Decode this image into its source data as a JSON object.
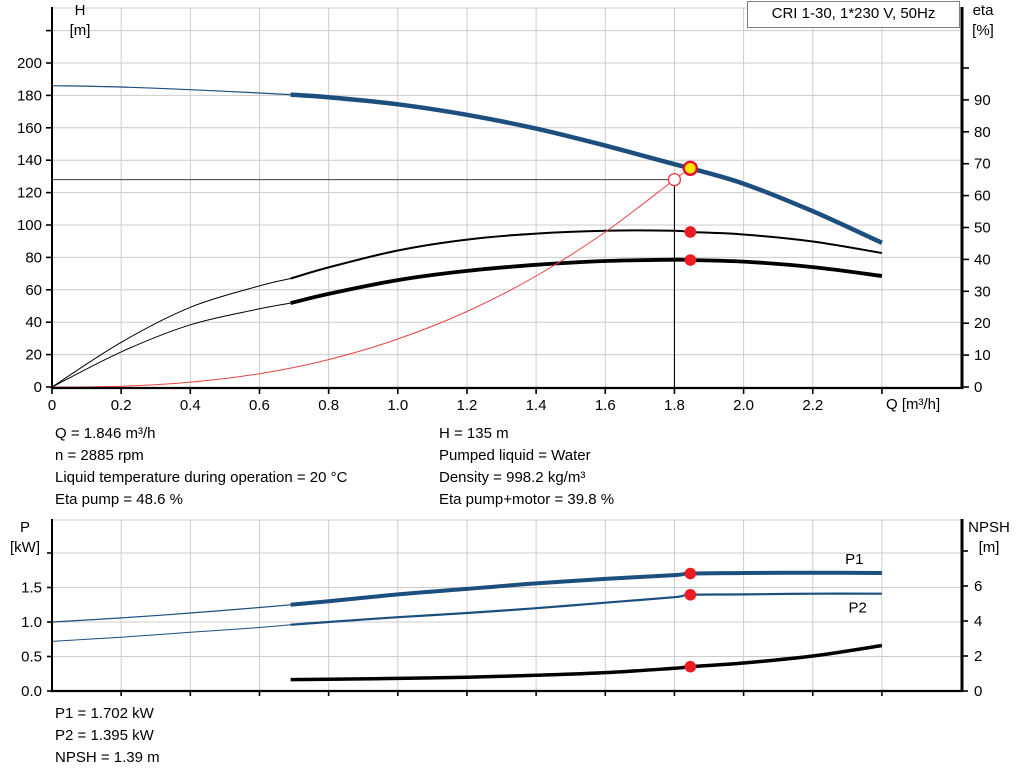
{
  "colors": {
    "curve_blue": "#1c4e7e",
    "curve_black": "#000000",
    "curve_red": "#e64545",
    "grid": "#cccccc",
    "guide_line": "#3f3f3f",
    "axis": "#000000",
    "marker_red": "#ed1c24",
    "marker_yellow": "#ffe600",
    "marker_ring": "#e8112d"
  },
  "chart_data": [
    {
      "type": "line",
      "name": "QH and efficiency curves",
      "title_box": "CRI 1-30, 1*230 V, 50Hz",
      "x_axis": {
        "label": "Q [m³/h]",
        "range": [
          0,
          2.63
        ],
        "ticks": [
          "0",
          "0.2",
          "0.4",
          "0.6",
          "0.8",
          "1.0",
          "1.2",
          "1.4",
          "1.6",
          "1.8",
          "2.0",
          "2.2"
        ],
        "tick_values": [
          0,
          0.2,
          0.4,
          0.6,
          0.8,
          1.0,
          1.2,
          1.4,
          1.6,
          1.8,
          2.0,
          2.2
        ],
        "extra_ticks": [
          2.4
        ]
      },
      "left_axis": {
        "label": "H",
        "unit": "[m]",
        "range": [
          0,
          234
        ],
        "ticks": [
          "0",
          "20",
          "40",
          "60",
          "80",
          "100",
          "120",
          "140",
          "160",
          "180",
          "200"
        ],
        "tick_values": [
          0,
          20,
          40,
          60,
          80,
          100,
          120,
          140,
          160,
          180,
          200
        ],
        "extra_ticks": [
          220
        ]
      },
      "right_axis": {
        "label": "eta",
        "unit": "[%]",
        "range": [
          0,
          119
        ],
        "ticks": [
          "0",
          "10",
          "20",
          "30",
          "40",
          "50",
          "60",
          "70",
          "80",
          "90"
        ],
        "tick_values": [
          0,
          10,
          20,
          30,
          40,
          50,
          60,
          70,
          80,
          90
        ],
        "extra_ticks": [
          100
        ]
      },
      "series": [
        {
          "id": "eta_pump",
          "name": "Eta pump curve",
          "axis": "right",
          "color_key": "curve_black",
          "width_thin": 1,
          "width_thick": 2,
          "split_q": 0.69,
          "q": [
            0,
            0.2,
            0.4,
            0.6,
            0.69,
            0.8,
            1.0,
            1.2,
            1.4,
            1.6,
            1.8,
            1.846,
            2.0,
            2.2,
            2.4
          ],
          "v": [
            0,
            14,
            25,
            31.7,
            34,
            37.5,
            42.8,
            46.2,
            48.1,
            49.0,
            49.0,
            48.6,
            47.8,
            45.6,
            42
          ]
        },
        {
          "id": "eta_pump_motor",
          "name": "Eta pump+motor curve",
          "axis": "right",
          "color_key": "curve_black",
          "width_thin": 1,
          "width_thick": 3.8,
          "split_q": 0.69,
          "q": [
            0,
            0.2,
            0.4,
            0.6,
            0.69,
            0.8,
            1.0,
            1.2,
            1.4,
            1.6,
            1.8,
            1.846,
            2.0,
            2.2,
            2.4
          ],
          "v": [
            0,
            11,
            19.5,
            24.5,
            26.3,
            29.2,
            33.5,
            36.4,
            38.3,
            39.5,
            39.9,
            39.8,
            39.3,
            37.6,
            34.8
          ]
        },
        {
          "id": "system_curve",
          "name": "System curve",
          "axis": "left",
          "color_key": "curve_red",
          "width_thin": 1,
          "width_thick": 1,
          "split_q": null,
          "q": [
            0,
            0.2,
            0.4,
            0.6,
            0.8,
            1.0,
            1.2,
            1.4,
            1.6,
            1.8,
            1.846
          ],
          "v": [
            0,
            0.5,
            3,
            8.2,
            16.9,
            29.6,
            46.6,
            68.5,
            95.7,
            128,
            135
          ]
        },
        {
          "id": "head",
          "name": "QH pump curve",
          "axis": "left",
          "color_key": "curve_blue",
          "width_thin": 1.2,
          "width_thick": 4.5,
          "split_q": 0.69,
          "q": [
            0,
            0.2,
            0.4,
            0.6,
            0.69,
            0.8,
            1.0,
            1.2,
            1.4,
            1.6,
            1.8,
            1.846,
            2.0,
            2.2,
            2.4
          ],
          "v": [
            186,
            185.2,
            183.5,
            181.5,
            180.5,
            178.8,
            174.5,
            168,
            159.5,
            149,
            137.5,
            135,
            125.5,
            108.5,
            89
          ]
        }
      ],
      "guides": [
        {
          "dir": "h",
          "axis": "left",
          "value": 128,
          "q_from": 0,
          "q_to": 1.8
        },
        {
          "dir": "v",
          "axis": "left",
          "q": 1.8,
          "v_from": 0,
          "v_to": 128
        }
      ],
      "markers": [
        {
          "name": "requested-duty-point",
          "style": "open",
          "q": 1.8,
          "axis": "left",
          "value": 128,
          "r": 6
        },
        {
          "name": "eta-pump-duty-point",
          "style": "red",
          "q": 1.846,
          "axis": "right",
          "value": 48.6,
          "r": 5.8
        },
        {
          "name": "eta-pump-motor-duty-point",
          "style": "red",
          "q": 1.846,
          "axis": "right",
          "value": 39.8,
          "r": 5.8
        },
        {
          "name": "duty-point",
          "style": "yellow",
          "q": 1.846,
          "axis": "left",
          "value": 135,
          "r": 6.5
        }
      ]
    },
    {
      "type": "line",
      "name": "Power and NPSH curves",
      "title_box": "",
      "x_axis": {
        "label": "",
        "range": [
          0,
          2.63
        ],
        "ticks": [],
        "tick_values": [],
        "extra_ticks": [
          0.2,
          0.4,
          0.6,
          0.8,
          1.0,
          1.2,
          1.4,
          1.6,
          1.8,
          2.0,
          2.2,
          2.4
        ]
      },
      "left_axis": {
        "label": "P",
        "unit": "[kW]",
        "range": [
          0,
          2.48
        ],
        "ticks": [
          "0.0",
          "0.5",
          "1.0",
          "1.5"
        ],
        "tick_values": [
          0,
          0.5,
          1.0,
          1.5
        ],
        "extra_ticks": [
          2.0
        ]
      },
      "right_axis": {
        "label": "NPSH",
        "unit": "[m]",
        "range": [
          0,
          9.8
        ],
        "ticks": [
          "0",
          "2",
          "4",
          "6"
        ],
        "tick_values": [
          0,
          2,
          4,
          6
        ],
        "extra_ticks": [
          8
        ]
      },
      "series": [
        {
          "id": "p2",
          "name": "P2 shaft power",
          "axis": "left",
          "color_key": "curve_blue",
          "width_thin": 1,
          "width_thick": 2.2,
          "split_q": 0.69,
          "label": "P2",
          "label_q": 2.33,
          "label_dy": 15,
          "q": [
            0,
            0.2,
            0.4,
            0.6,
            0.69,
            0.8,
            1.0,
            1.2,
            1.4,
            1.6,
            1.8,
            1.846,
            2.0,
            2.2,
            2.4
          ],
          "v": [
            0.72,
            0.78,
            0.85,
            0.92,
            0.96,
            1.0,
            1.07,
            1.13,
            1.2,
            1.28,
            1.36,
            1.395,
            1.4,
            1.41,
            1.41
          ]
        },
        {
          "id": "p1",
          "name": "P1 input power",
          "axis": "left",
          "color_key": "curve_blue",
          "width_thin": 1.2,
          "width_thick": 4,
          "split_q": 0.69,
          "label": "P1",
          "label_q": 2.32,
          "label_dy": -13,
          "q": [
            0,
            0.2,
            0.4,
            0.6,
            0.69,
            0.8,
            1.0,
            1.2,
            1.4,
            1.6,
            1.8,
            1.846,
            2.0,
            2.2,
            2.4
          ],
          "v": [
            1.0,
            1.06,
            1.13,
            1.21,
            1.25,
            1.3,
            1.4,
            1.48,
            1.56,
            1.625,
            1.68,
            1.702,
            1.71,
            1.715,
            1.71
          ]
        },
        {
          "id": "npsh",
          "name": "NPSH curve",
          "axis": "right",
          "color_key": "curve_black",
          "width_thin": 3.5,
          "width_thick": 3.5,
          "split_q": null,
          "q": [
            0.69,
            0.8,
            1.0,
            1.2,
            1.4,
            1.6,
            1.8,
            1.846,
            2.0,
            2.2,
            2.4
          ],
          "v": [
            0.65,
            0.67,
            0.72,
            0.79,
            0.9,
            1.05,
            1.3,
            1.39,
            1.6,
            2.0,
            2.6
          ]
        }
      ],
      "guides": [],
      "markers": [
        {
          "name": "p1-duty-point",
          "style": "red",
          "q": 1.846,
          "axis": "left",
          "value": 1.702,
          "r": 5.8
        },
        {
          "name": "p2-duty-point",
          "style": "red",
          "q": 1.846,
          "axis": "left",
          "value": 1.395,
          "r": 5.8
        },
        {
          "name": "npsh-duty-point",
          "style": "red",
          "q": 1.846,
          "axis": "right",
          "value": 1.39,
          "r": 5.8
        }
      ]
    }
  ],
  "info_top": {
    "left": [
      "Q = 1.846 m³/h",
      "n = 2885 rpm",
      "Liquid temperature during operation = 20 °C",
      "Eta pump = 48.6 %"
    ],
    "right": [
      "H = 135 m",
      "Pumped liquid = Water",
      "Density = 998.2 kg/m³",
      "Eta pump+motor = 39.8 %"
    ]
  },
  "info_bottom": [
    "P1 = 1.702 kW",
    "P2 = 1.395 kW",
    "NPSH = 1.39 m"
  ]
}
